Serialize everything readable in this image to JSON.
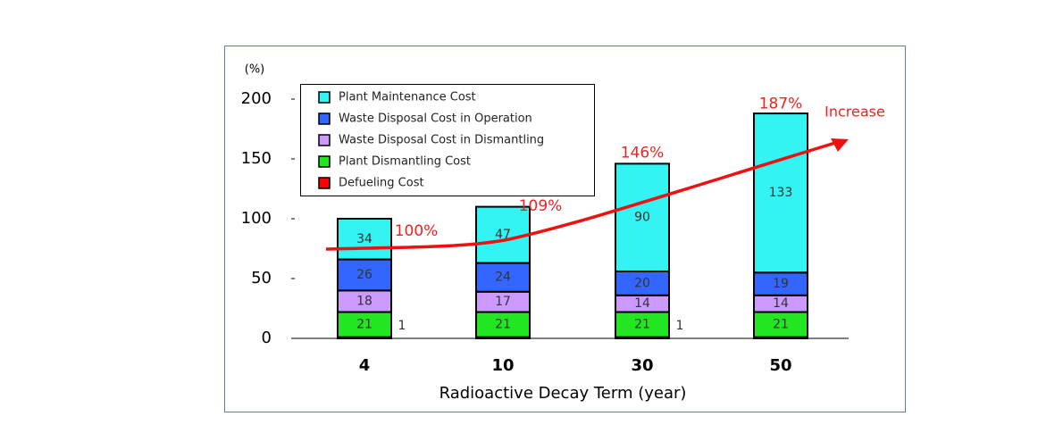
{
  "chart_data": {
    "type": "stacked_bar",
    "y_unit": "(%)",
    "xlabel": "Radioactive Decay Term (year)",
    "categories": [
      "4",
      "10",
      "30",
      "50"
    ],
    "ylim": [
      0,
      200
    ],
    "yticks": [
      0,
      50,
      100,
      150,
      200
    ],
    "series": [
      {
        "name": "Defueling Cost",
        "color": "#ff0000",
        "values": [
          1,
          1,
          1,
          1
        ],
        "value_labels": [
          "1",
          null,
          "1",
          null
        ]
      },
      {
        "name": "Plant Dismantling Cost",
        "color": "#22e622",
        "values": [
          21,
          21,
          21,
          21
        ]
      },
      {
        "name": "Waste Disposal Cost in Dismantling",
        "color": "#cc99ff",
        "values": [
          18,
          17,
          14,
          14
        ]
      },
      {
        "name": "Waste Disposal Cost in Operation",
        "color": "#3366ff",
        "values": [
          26,
          24,
          20,
          19
        ]
      },
      {
        "name": "Plant Maintenance Cost",
        "color": "#33f3f3",
        "values": [
          34,
          47,
          90,
          133
        ]
      }
    ],
    "totals": [
      100,
      109,
      146,
      187
    ],
    "total_labels": [
      "100%",
      "109%",
      "146%",
      "187%"
    ],
    "trend_label": "Increase"
  }
}
